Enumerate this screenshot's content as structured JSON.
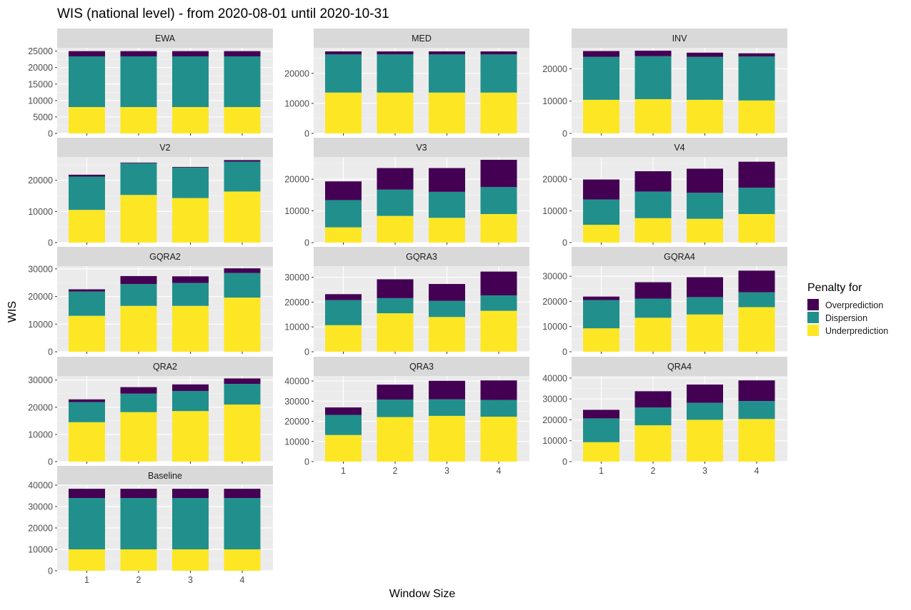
{
  "chart_title": "WIS (national level) - from 2020-08-01 until 2020-10-31",
  "y_axis_label": "WIS",
  "x_axis_label": "Window Size",
  "legend": {
    "title": "Penalty for",
    "items": [
      {
        "label": "Overprediction",
        "color": "#440154"
      },
      {
        "label": "Dispersion",
        "color": "#21908C"
      },
      {
        "label": "Underprediction",
        "color": "#FDE725"
      }
    ]
  },
  "chart_data": {
    "type": "bar",
    "stacked": true,
    "facets": true,
    "title": "WIS (national level) - from 2020-08-01 until 2020-10-31",
    "xlabel": "Window Size",
    "ylabel": "WIS",
    "categories": [
      "1",
      "2",
      "3",
      "4"
    ],
    "series_names": [
      "Underprediction",
      "Dispersion",
      "Overprediction"
    ],
    "panels": [
      {
        "name": "EWA",
        "ylim": [
          0,
          26000
        ],
        "yticks": [
          0,
          5000,
          10000,
          15000,
          20000,
          25000
        ],
        "under": [
          8000,
          8000,
          8000,
          8000
        ],
        "disp": [
          15400,
          15400,
          15400,
          15400
        ],
        "over": [
          1600,
          1600,
          1600,
          1600
        ]
      },
      {
        "name": "MED",
        "ylim": [
          0,
          28500
        ],
        "yticks": [
          0,
          10000,
          20000
        ],
        "under": [
          13600,
          13600,
          13600,
          13600
        ],
        "disp": [
          12700,
          12700,
          12700,
          12700
        ],
        "over": [
          1000,
          1000,
          1000,
          1000
        ]
      },
      {
        "name": "INV",
        "ylim": [
          0,
          26500
        ],
        "yticks": [
          0,
          10000,
          20000
        ],
        "under": [
          10400,
          10600,
          10400,
          10200
        ],
        "disp": [
          13300,
          13300,
          13300,
          13600
        ],
        "over": [
          1800,
          1700,
          1300,
          1000
        ]
      },
      {
        "name": "V2",
        "ylim": [
          0,
          27500
        ],
        "yticks": [
          0,
          10000,
          20000
        ],
        "under": [
          10500,
          15300,
          14300,
          16400
        ],
        "disp": [
          10700,
          10200,
          9800,
          9600
        ],
        "over": [
          600,
          200,
          200,
          500
        ]
      },
      {
        "name": "V3",
        "ylim": [
          0,
          27000
        ],
        "yticks": [
          0,
          10000,
          20000
        ],
        "under": [
          4800,
          8400,
          7800,
          9000
        ],
        "disp": [
          8600,
          8300,
          8200,
          8500
        ],
        "over": [
          5900,
          6800,
          7500,
          8600
        ]
      },
      {
        "name": "V4",
        "ylim": [
          0,
          27000
        ],
        "yticks": [
          0,
          10000,
          20000
        ],
        "under": [
          5600,
          7700,
          7500,
          9000
        ],
        "disp": [
          8000,
          8400,
          8200,
          8300
        ],
        "over": [
          6300,
          6400,
          7600,
          8200
        ]
      },
      {
        "name": "GQRA2",
        "ylim": [
          0,
          31000
        ],
        "yticks": [
          0,
          10000,
          20000,
          30000
        ],
        "under": [
          13000,
          16600,
          16600,
          19600
        ],
        "disp": [
          8800,
          7900,
          8300,
          8900
        ],
        "over": [
          800,
          2900,
          2400,
          1700
        ]
      },
      {
        "name": "GQRA3",
        "ylim": [
          0,
          34500
        ],
        "yticks": [
          0,
          10000,
          20000,
          30000
        ],
        "under": [
          10700,
          15500,
          14000,
          16500
        ],
        "disp": [
          10100,
          6100,
          6500,
          6200
        ],
        "over": [
          2400,
          7600,
          6800,
          9600
        ]
      },
      {
        "name": "GQRA4",
        "ylim": [
          0,
          34000
        ],
        "yticks": [
          0,
          10000,
          20000,
          30000
        ],
        "under": [
          9300,
          13500,
          14800,
          17700
        ],
        "disp": [
          11200,
          7600,
          6900,
          5900
        ],
        "over": [
          1400,
          6500,
          7900,
          8600
        ]
      },
      {
        "name": "QRA2",
        "ylim": [
          0,
          31500
        ],
        "yticks": [
          0,
          10000,
          20000,
          30000
        ],
        "under": [
          14500,
          18200,
          18600,
          21000
        ],
        "disp": [
          7400,
          6800,
          7400,
          7600
        ],
        "over": [
          1000,
          2400,
          2400,
          2000
        ]
      },
      {
        "name": "QRA3",
        "ylim": [
          0,
          42500
        ],
        "yticks": [
          0,
          10000,
          20000,
          30000,
          40000
        ],
        "under": [
          13200,
          22100,
          22700,
          22300
        ],
        "disp": [
          10000,
          8700,
          8200,
          8300
        ],
        "over": [
          3700,
          7400,
          9200,
          9700
        ]
      },
      {
        "name": "QRA4",
        "ylim": [
          0,
          41000
        ],
        "yticks": [
          0,
          10000,
          20000,
          30000,
          40000
        ],
        "under": [
          9300,
          17400,
          20000,
          20400
        ],
        "disp": [
          11400,
          8500,
          8200,
          8600
        ],
        "over": [
          4100,
          7800,
          8700,
          9900
        ]
      },
      {
        "name": "Baseline",
        "ylim": [
          0,
          40000
        ],
        "yticks": [
          0,
          10000,
          20000,
          30000,
          40000
        ],
        "under": [
          10000,
          10000,
          10000,
          10000
        ],
        "disp": [
          24000,
          24000,
          24000,
          24000
        ],
        "over": [
          4300,
          4300,
          4300,
          4300
        ]
      }
    ]
  }
}
